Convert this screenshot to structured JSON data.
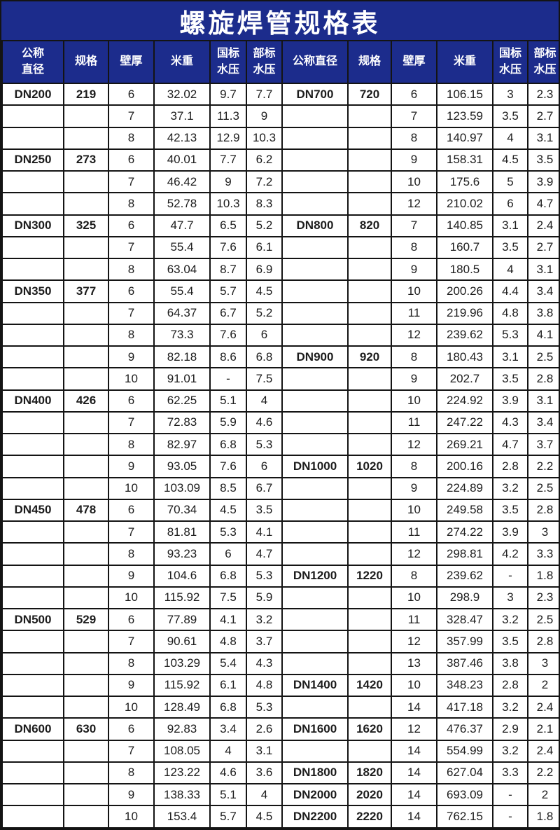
{
  "title": "螺旋焊管规格表",
  "colors": {
    "header_bg": "#1c2c8c",
    "border": "#141414",
    "body_bg": "#ffffff",
    "text": "#1c1c1c",
    "header_text": "#ffffff"
  },
  "columns_left": [
    "公称\n直径",
    "规格",
    "壁厚",
    "米重",
    "国标\n水压",
    "部标\n水压"
  ],
  "columns_right": [
    "公称直径",
    "规格",
    "壁厚",
    "米重",
    "国标\n水压",
    "部标\n水压"
  ],
  "rows": [
    [
      "DN200",
      "219",
      "6",
      "32.02",
      "9.7",
      "7.7",
      "DN700",
      "720",
      "6",
      "106.15",
      "3",
      "2.3"
    ],
    [
      "",
      "",
      "7",
      "37.1",
      "11.3",
      "9",
      "",
      "",
      "7",
      "123.59",
      "3.5",
      "2.7"
    ],
    [
      "",
      "",
      "8",
      "42.13",
      "12.9",
      "10.3",
      "",
      "",
      "8",
      "140.97",
      "4",
      "3.1"
    ],
    [
      "DN250",
      "273",
      "6",
      "40.01",
      "7.7",
      "6.2",
      "",
      "",
      "9",
      "158.31",
      "4.5",
      "3.5"
    ],
    [
      "",
      "",
      "7",
      "46.42",
      "9",
      "7.2",
      "",
      "",
      "10",
      "175.6",
      "5",
      "3.9"
    ],
    [
      "",
      "",
      "8",
      "52.78",
      "10.3",
      "8.3",
      "",
      "",
      "12",
      "210.02",
      "6",
      "4.7"
    ],
    [
      "DN300",
      "325",
      "6",
      "47.7",
      "6.5",
      "5.2",
      "DN800",
      "820",
      "7",
      "140.85",
      "3.1",
      "2.4"
    ],
    [
      "",
      "",
      "7",
      "55.4",
      "7.6",
      "6.1",
      "",
      "",
      "8",
      "160.7",
      "3.5",
      "2.7"
    ],
    [
      "",
      "",
      "8",
      "63.04",
      "8.7",
      "6.9",
      "",
      "",
      "9",
      "180.5",
      "4",
      "3.1"
    ],
    [
      "DN350",
      "377",
      "6",
      "55.4",
      "5.7",
      "4.5",
      "",
      "",
      "10",
      "200.26",
      "4.4",
      "3.4"
    ],
    [
      "",
      "",
      "7",
      "64.37",
      "6.7",
      "5.2",
      "",
      "",
      "11",
      "219.96",
      "4.8",
      "3.8"
    ],
    [
      "",
      "",
      "8",
      "73.3",
      "7.6",
      "6",
      "",
      "",
      "12",
      "239.62",
      "5.3",
      "4.1"
    ],
    [
      "",
      "",
      "9",
      "82.18",
      "8.6",
      "6.8",
      "DN900",
      "920",
      "8",
      "180.43",
      "3.1",
      "2.5"
    ],
    [
      "",
      "",
      "10",
      "91.01",
      "-",
      "7.5",
      "",
      "",
      "9",
      "202.7",
      "3.5",
      "2.8"
    ],
    [
      "DN400",
      "426",
      "6",
      "62.25",
      "5.1",
      "4",
      "",
      "",
      "10",
      "224.92",
      "3.9",
      "3.1"
    ],
    [
      "",
      "",
      "7",
      "72.83",
      "5.9",
      "4.6",
      "",
      "",
      "11",
      "247.22",
      "4.3",
      "3.4"
    ],
    [
      "",
      "",
      "8",
      "82.97",
      "6.8",
      "5.3",
      "",
      "",
      "12",
      "269.21",
      "4.7",
      "3.7"
    ],
    [
      "",
      "",
      "9",
      "93.05",
      "7.6",
      "6",
      "DN1000",
      "1020",
      "8",
      "200.16",
      "2.8",
      "2.2"
    ],
    [
      "",
      "",
      "10",
      "103.09",
      "8.5",
      "6.7",
      "",
      "",
      "9",
      "224.89",
      "3.2",
      "2.5"
    ],
    [
      "DN450",
      "478",
      "6",
      "70.34",
      "4.5",
      "3.5",
      "",
      "",
      "10",
      "249.58",
      "3.5",
      "2.8"
    ],
    [
      "",
      "",
      "7",
      "81.81",
      "5.3",
      "4.1",
      "",
      "",
      "11",
      "274.22",
      "3.9",
      "3"
    ],
    [
      "",
      "",
      "8",
      "93.23",
      "6",
      "4.7",
      "",
      "",
      "12",
      "298.81",
      "4.2",
      "3.3"
    ],
    [
      "",
      "",
      "9",
      "104.6",
      "6.8",
      "5.3",
      "DN1200",
      "1220",
      "8",
      "239.62",
      "-",
      "1.8"
    ],
    [
      "",
      "",
      "10",
      "115.92",
      "7.5",
      "5.9",
      "",
      "",
      "10",
      "298.9",
      "3",
      "2.3"
    ],
    [
      "DN500",
      "529",
      "6",
      "77.89",
      "4.1",
      "3.2",
      "",
      "",
      "11",
      "328.47",
      "3.2",
      "2.5"
    ],
    [
      "",
      "",
      "7",
      "90.61",
      "4.8",
      "3.7",
      "",
      "",
      "12",
      "357.99",
      "3.5",
      "2.8"
    ],
    [
      "",
      "",
      "8",
      "103.29",
      "5.4",
      "4.3",
      "",
      "",
      "13",
      "387.46",
      "3.8",
      "3"
    ],
    [
      "",
      "",
      "9",
      "115.92",
      "6.1",
      "4.8",
      "DN1400",
      "1420",
      "10",
      "348.23",
      "2.8",
      "2"
    ],
    [
      "",
      "",
      "10",
      "128.49",
      "6.8",
      "5.3",
      "",
      "",
      "14",
      "417.18",
      "3.2",
      "2.4"
    ],
    [
      "DN600",
      "630",
      "6",
      "92.83",
      "3.4",
      "2.6",
      "DN1600",
      "1620",
      "12",
      "476.37",
      "2.9",
      "2.1"
    ],
    [
      "",
      "",
      "7",
      "108.05",
      "4",
      "3.1",
      "",
      "",
      "14",
      "554.99",
      "3.2",
      "2.4"
    ],
    [
      "",
      "",
      "8",
      "123.22",
      "4.6",
      "3.6",
      "DN1800",
      "1820",
      "14",
      "627.04",
      "3.3",
      "2.2"
    ],
    [
      "",
      "",
      "9",
      "138.33",
      "5.1",
      "4",
      "DN2000",
      "2020",
      "14",
      "693.09",
      "-",
      "2"
    ],
    [
      "",
      "",
      "10",
      "153.4",
      "5.7",
      "4.5",
      "DN2200",
      "2220",
      "14",
      "762.15",
      "-",
      "1.8"
    ]
  ]
}
